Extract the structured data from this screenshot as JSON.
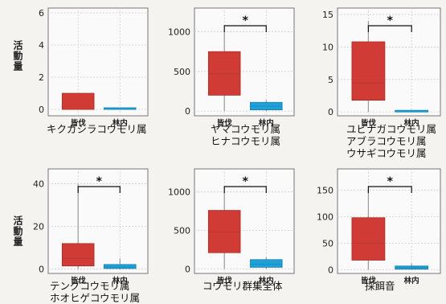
{
  "ylabel": "活動量",
  "colors": {
    "treatment": "#d13b35",
    "control": "#1ea0d8",
    "grid": "#cfcfcf",
    "axis": "#777777"
  },
  "chart_data": [
    {
      "type": "box",
      "caption": [
        "キクガシラコウモリ属"
      ],
      "categories": [
        "皆伐",
        "林内"
      ],
      "ylim": [
        -0.4,
        6.3
      ],
      "yticks": [
        0,
        2,
        4,
        6
      ],
      "boxes": [
        {
          "category": "皆伐",
          "q1": 0,
          "median": 0,
          "q3": 1.0,
          "whisker_low": 0,
          "whisker_high": 1.0
        },
        {
          "category": "林内",
          "q1": 0,
          "median": 0,
          "q3": 0.05,
          "whisker_low": 0,
          "whisker_high": 0.05
        }
      ],
      "significance": null
    },
    {
      "type": "box",
      "caption": [
        "ヤマコウモリ属",
        "ヒナコウモリ属"
      ],
      "categories": [
        "皆伐",
        "林内"
      ],
      "ylim": [
        -60,
        1300
      ],
      "yticks": [
        0,
        500,
        1000
      ],
      "boxes": [
        {
          "category": "皆伐",
          "q1": 200,
          "median": 470,
          "q3": 750,
          "whisker_low": 0,
          "whisker_high": 1000
        },
        {
          "category": "林内",
          "q1": 15,
          "median": 60,
          "q3": 110,
          "whisker_low": 0,
          "whisker_high": 140
        }
      ],
      "significance": "*"
    },
    {
      "type": "box",
      "caption": [
        "ユビナガコウモリ属",
        "アブラコウモリ属",
        "ウサギコウモリ属"
      ],
      "categories": [
        "皆伐",
        "林内"
      ],
      "ylim": [
        -0.6,
        16
      ],
      "yticks": [
        0,
        5,
        10,
        15
      ],
      "boxes": [
        {
          "category": "皆伐",
          "q1": 1.8,
          "median": 4.5,
          "q3": 10.8,
          "whisker_low": 0,
          "whisker_high": 14
        },
        {
          "category": "林内",
          "q1": 0,
          "median": 0,
          "q3": 0.05,
          "whisker_low": 0,
          "whisker_high": 0.05
        }
      ],
      "significance": "*"
    },
    {
      "type": "box",
      "caption": [
        "テングコウモリ属",
        "ホオヒゲコウモリ属"
      ],
      "categories": [
        "皆伐",
        "林内"
      ],
      "ylim": [
        -2,
        47
      ],
      "yticks": [
        0,
        20,
        40
      ],
      "boxes": [
        {
          "category": "皆伐",
          "q1": 1.5,
          "median": 5,
          "q3": 12,
          "whisker_low": 0,
          "whisker_high": 40
        },
        {
          "category": "林内",
          "q1": 0.3,
          "median": 1,
          "q3": 2.2,
          "whisker_low": 0,
          "whisker_high": 5
        }
      ],
      "significance": "*"
    },
    {
      "type": "box",
      "caption": [
        "コウモリ群集全体"
      ],
      "categories": [
        "皆伐",
        "林内"
      ],
      "ylim": [
        -60,
        1300
      ],
      "yticks": [
        0,
        500,
        1000
      ],
      "boxes": [
        {
          "category": "皆伐",
          "q1": 210,
          "median": 480,
          "q3": 760,
          "whisker_low": 0,
          "whisker_high": 1000
        },
        {
          "category": "林内",
          "q1": 20,
          "median": 60,
          "q3": 120,
          "whisker_low": 0,
          "whisker_high": 150
        }
      ],
      "significance": "*"
    },
    {
      "type": "box",
      "caption": [
        "採餌音"
      ],
      "categories": [
        "皆伐",
        "林内"
      ],
      "ylim": [
        -7,
        190
      ],
      "yticks": [
        0,
        50,
        100,
        150
      ],
      "boxes": [
        {
          "category": "皆伐",
          "q1": 18,
          "median": 50,
          "q3": 98,
          "whisker_low": 0,
          "whisker_high": 150
        },
        {
          "category": "林内",
          "q1": 1,
          "median": 4,
          "q3": 7,
          "whisker_low": 0,
          "whisker_high": 12
        }
      ],
      "significance": "*"
    }
  ]
}
